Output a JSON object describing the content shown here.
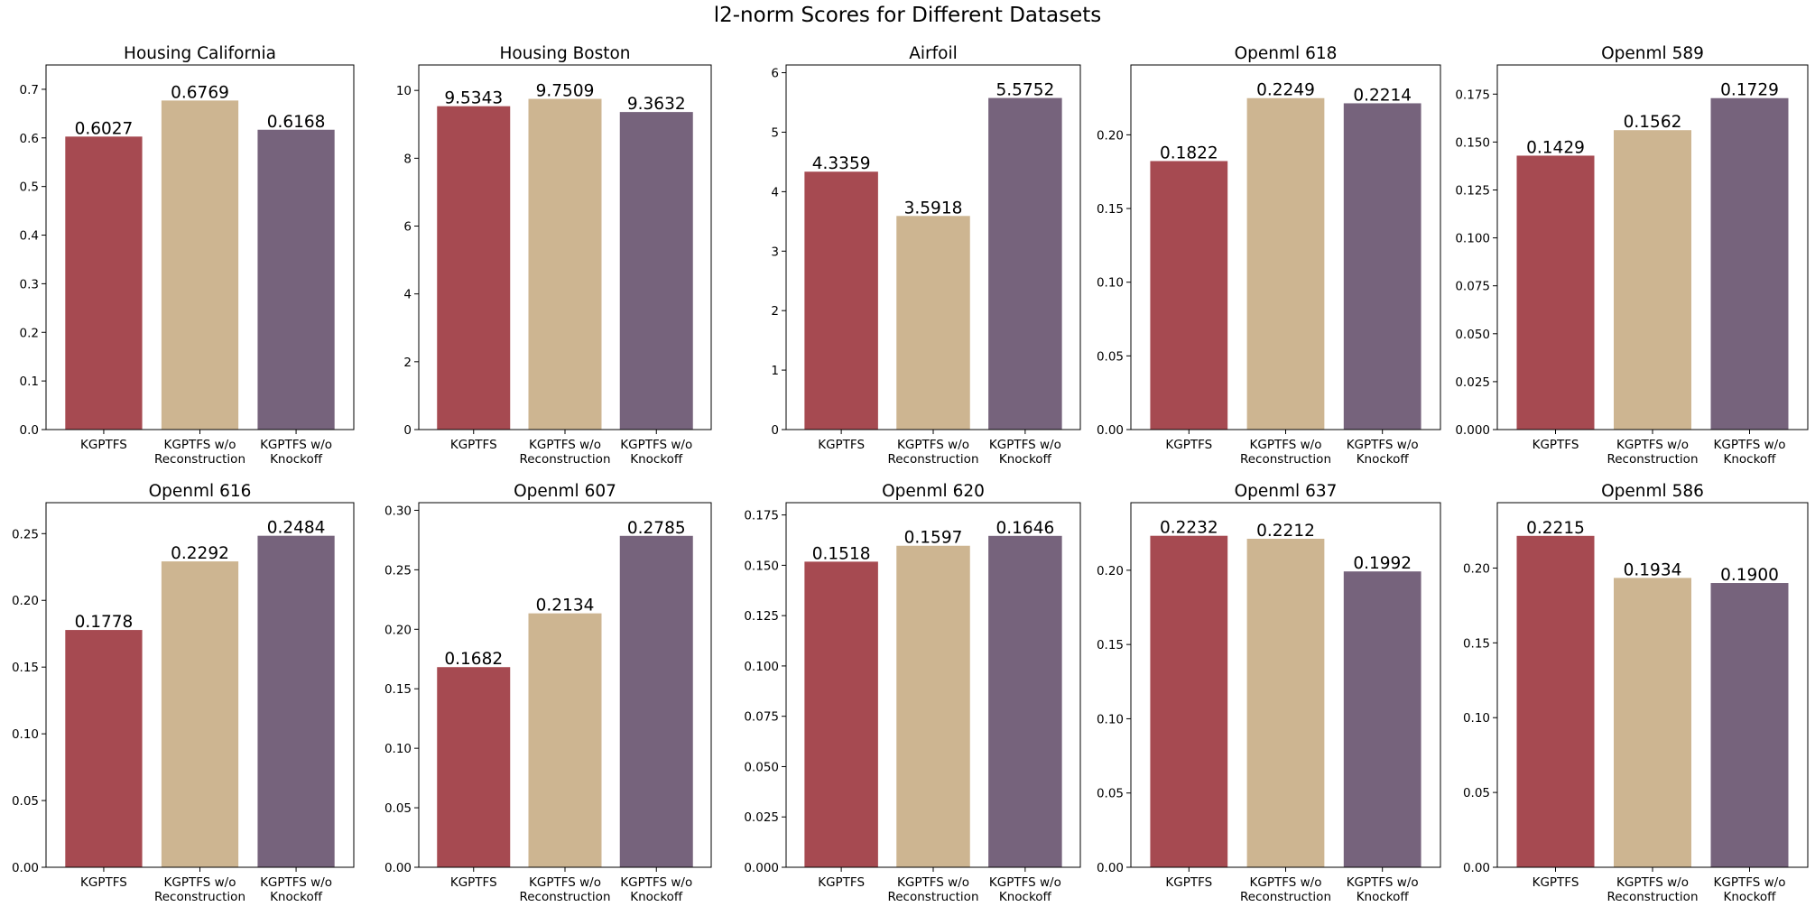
{
  "colors": {
    "series": [
      "#a64a51",
      "#cdb591",
      "#76637c"
    ],
    "axis": "#000000",
    "background": "#ffffff"
  },
  "chart_data": {
    "suptitle": "l2-norm Scores for Different Datasets",
    "type": "bar",
    "categories": [
      "KGPTFS",
      "KGPTFS w/o\nReconstruction",
      "KGPTFS w/o\nKnockoff"
    ],
    "panels": [
      {
        "title": "Housing California",
        "values": [
          0.6027,
          0.6769,
          0.6168
        ],
        "labels": [
          "0.6027",
          "0.6769",
          "0.6168"
        ],
        "ylim": [
          0,
          0.75
        ],
        "yticks": [
          0.0,
          0.1,
          0.2,
          0.3,
          0.4,
          0.5,
          0.6,
          0.7
        ],
        "ytick_labels": [
          "0.0",
          "0.1",
          "0.2",
          "0.3",
          "0.4",
          "0.5",
          "0.6",
          "0.7"
        ]
      },
      {
        "title": "Housing Boston",
        "values": [
          9.5343,
          9.7509,
          9.3632
        ],
        "labels": [
          "9.5343",
          "9.7509",
          "9.3632"
        ],
        "ylim": [
          0,
          10.75
        ],
        "yticks": [
          0,
          2,
          4,
          6,
          8,
          10
        ],
        "ytick_labels": [
          "0",
          "2",
          "4",
          "6",
          "8",
          "10"
        ]
      },
      {
        "title": "Airfoil",
        "values": [
          4.3359,
          3.5918,
          5.5752
        ],
        "labels": [
          "4.3359",
          "3.5918",
          "5.5752"
        ],
        "ylim": [
          0,
          6.13
        ],
        "yticks": [
          0,
          1,
          2,
          3,
          4,
          5,
          6
        ],
        "ytick_labels": [
          "0",
          "1",
          "2",
          "3",
          "4",
          "5",
          "6"
        ]
      },
      {
        "title": "Openml 618",
        "values": [
          0.1822,
          0.2249,
          0.2214
        ],
        "labels": [
          "0.1822",
          "0.2249",
          "0.2214"
        ],
        "ylim": [
          0,
          0.2474
        ],
        "yticks": [
          0.0,
          0.05,
          0.1,
          0.15,
          0.2
        ],
        "ytick_labels": [
          "0.00",
          "0.05",
          "0.10",
          "0.15",
          "0.20"
        ]
      },
      {
        "title": "Openml 589",
        "values": [
          0.1429,
          0.1562,
          0.1729
        ],
        "labels": [
          "0.1429",
          "0.1562",
          "0.1729"
        ],
        "ylim": [
          0,
          0.1902
        ],
        "yticks": [
          0.0,
          0.025,
          0.05,
          0.075,
          0.1,
          0.125,
          0.15,
          0.175
        ],
        "ytick_labels": [
          "0.000",
          "0.025",
          "0.050",
          "0.075",
          "0.100",
          "0.125",
          "0.150",
          "0.175"
        ]
      },
      {
        "title": "Openml 616",
        "values": [
          0.1778,
          0.2292,
          0.2484
        ],
        "labels": [
          "0.1778",
          "0.2292",
          "0.2484"
        ],
        "ylim": [
          0,
          0.2732
        ],
        "yticks": [
          0.0,
          0.05,
          0.1,
          0.15,
          0.2,
          0.25
        ],
        "ytick_labels": [
          "0.00",
          "0.05",
          "0.10",
          "0.15",
          "0.20",
          "0.25"
        ]
      },
      {
        "title": "Openml 607",
        "values": [
          0.1682,
          0.2134,
          0.2785
        ],
        "labels": [
          "0.1682",
          "0.2134",
          "0.2785"
        ],
        "ylim": [
          0,
          0.3064
        ],
        "yticks": [
          0.0,
          0.05,
          0.1,
          0.15,
          0.2,
          0.25,
          0.3
        ],
        "ytick_labels": [
          "0.00",
          "0.05",
          "0.10",
          "0.15",
          "0.20",
          "0.25",
          "0.30"
        ]
      },
      {
        "title": "Openml 620",
        "values": [
          0.1518,
          0.1597,
          0.1646
        ],
        "labels": [
          "0.1518",
          "0.1597",
          "0.1646"
        ],
        "ylim": [
          0,
          0.1811
        ],
        "yticks": [
          0.0,
          0.025,
          0.05,
          0.075,
          0.1,
          0.125,
          0.15,
          0.175
        ],
        "ytick_labels": [
          "0.000",
          "0.025",
          "0.050",
          "0.075",
          "0.100",
          "0.125",
          "0.150",
          "0.175"
        ]
      },
      {
        "title": "Openml 637",
        "values": [
          0.2232,
          0.2212,
          0.1992
        ],
        "labels": [
          "0.2232",
          "0.2212",
          "0.1992"
        ],
        "ylim": [
          0,
          0.2455
        ],
        "yticks": [
          0.0,
          0.05,
          0.1,
          0.15,
          0.2
        ],
        "ytick_labels": [
          "0.00",
          "0.05",
          "0.10",
          "0.15",
          "0.20"
        ]
      },
      {
        "title": "Openml 586",
        "values": [
          0.2215,
          0.1934,
          0.19
        ],
        "labels": [
          "0.2215",
          "0.1934",
          "0.1900"
        ],
        "ylim": [
          0,
          0.2437
        ],
        "yticks": [
          0.0,
          0.05,
          0.1,
          0.15,
          0.2
        ],
        "ytick_labels": [
          "0.00",
          "0.05",
          "0.10",
          "0.15",
          "0.20"
        ]
      }
    ]
  }
}
